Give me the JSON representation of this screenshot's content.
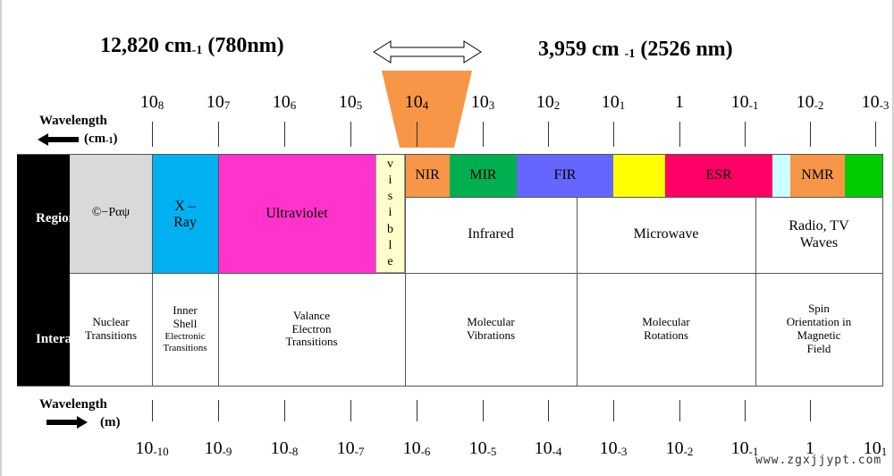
{
  "header": {
    "left_value": "12,820 cm",
    "left_sub": "-1",
    "left_paren": " (780nm)",
    "right_value": "3,959 cm ",
    "right_sub": "-1",
    "right_paren": " (2526 nm)"
  },
  "top_axis": {
    "label_line1": "Wavelength",
    "label_line2": "(cm",
    "label_sub": "-1",
    "label_close": ")",
    "ticks": [
      {
        "base": "10",
        "exp": "8"
      },
      {
        "base": "10",
        "exp": "7"
      },
      {
        "base": "10",
        "exp": "6"
      },
      {
        "base": "10",
        "exp": "5"
      },
      {
        "base": "10",
        "exp": "4"
      },
      {
        "base": "10",
        "exp": "3"
      },
      {
        "base": "10",
        "exp": "2"
      },
      {
        "base": "10",
        "exp": "1"
      },
      {
        "base": "1",
        "exp": ""
      },
      {
        "base": "10",
        "exp": "-1"
      },
      {
        "base": "10",
        "exp": "-2"
      },
      {
        "base": "10",
        "exp": "-3"
      }
    ]
  },
  "bottom_axis": {
    "label_line1": "Wavelength",
    "label_line2": "(m)",
    "ticks": [
      {
        "base": "10",
        "exp": "-10"
      },
      {
        "base": "10",
        "exp": "-9"
      },
      {
        "base": "10",
        "exp": "-8"
      },
      {
        "base": "10",
        "exp": "-7"
      },
      {
        "base": "10",
        "exp": "-6"
      },
      {
        "base": "10",
        "exp": "-5"
      },
      {
        "base": "10",
        "exp": "-4"
      },
      {
        "base": "10",
        "exp": "-3"
      },
      {
        "base": "10",
        "exp": "-2"
      },
      {
        "base": "10",
        "exp": "-1"
      },
      {
        "base": "1",
        "exp": ""
      },
      {
        "base": "10",
        "exp": "1"
      }
    ]
  },
  "row_labels": {
    "region": "Region",
    "interaction": "Intera"
  },
  "regions": {
    "gamma": "©−Ραψ",
    "xray_line1": "X –",
    "xray_line2": "Ray",
    "ultraviolet": "Ultraviolet",
    "visible_letters": [
      "v",
      "i",
      "s",
      "i",
      "b",
      "l",
      "e"
    ],
    "nir": "NIR",
    "mir": "MIR",
    "fir": "FIR",
    "esr": "ESR",
    "nmr": "NMR",
    "infrared": "Infrared",
    "microwave": "Microwave",
    "radio_line1": "Radio, TV",
    "radio_line2": "Waves"
  },
  "interactions": {
    "nuclear_line1": "Nuclear",
    "nuclear_line2": "Transitions",
    "inner_line1": "Inner",
    "inner_line2": "Shell",
    "inner_line3": "Electronic",
    "inner_line4": "Transitions",
    "valance_line1": "Valance",
    "valance_line2": "Electron",
    "valance_line3": "Transitions",
    "molvib_line1": "Molecular",
    "molvib_line2": "Vibrations",
    "molrot_line1": "Molecular",
    "molrot_line2": "Rotations",
    "spin_line1": "Spin",
    "spin_line2": "Orientation in",
    "spin_line3": "Magnetic",
    "spin_line4": "Field"
  },
  "watermark": "www.zgxjjypt.com",
  "colors": {
    "gamma": "#d9d9d9",
    "xray": "#00b0f0",
    "ultraviolet": "#ff33cc",
    "visible": "#ffffcc",
    "nir": "#f79646",
    "mir": "#00b050",
    "fir": "#6666ff",
    "yellow": "#ffff00",
    "esr": "#ff0066",
    "light_cyan": "#ccffff",
    "nmr": "#f79646",
    "green": "#00cc00",
    "highlight": "#f79646"
  }
}
